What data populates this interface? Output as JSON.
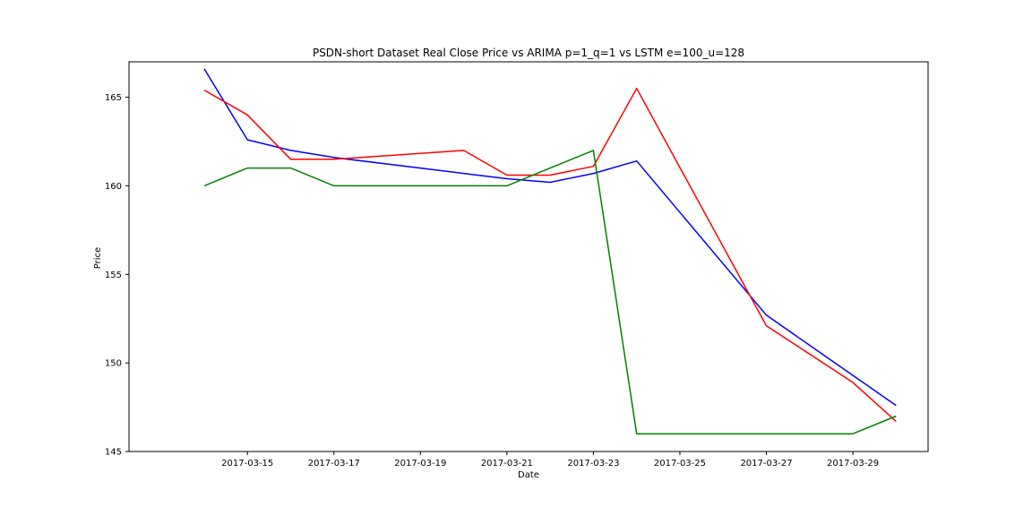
{
  "chart_data": {
    "type": "line",
    "title": "PSDN-short Dataset Real Close Price vs ARIMA p=1_q=1 vs LSTM e=100_u=128",
    "xlabel": "Date",
    "ylabel": "Price",
    "x_type": "date",
    "xlim": [
      "2017-03-13",
      "2017-03-30"
    ],
    "ylim": [
      145,
      167
    ],
    "grid": false,
    "x": [
      "2017-03-14",
      "2017-03-15",
      "2017-03-16",
      "2017-03-17",
      "2017-03-20",
      "2017-03-21",
      "2017-03-22",
      "2017-03-23",
      "2017-03-24",
      "2017-03-27",
      "2017-03-29",
      "2017-03-30"
    ],
    "x_ticks": [
      "2017-03-15",
      "2017-03-17",
      "2017-03-19",
      "2017-03-21",
      "2017-03-23",
      "2017-03-25",
      "2017-03-27",
      "2017-03-29"
    ],
    "y_ticks": [
      145,
      150,
      155,
      160,
      165
    ],
    "series": [
      {
        "color": "#0000ff",
        "values": [
          166.6,
          162.6,
          162.0,
          161.6,
          160.7,
          160.4,
          160.2,
          160.7,
          161.4,
          152.7,
          149.3,
          147.6
        ]
      },
      {
        "color": "#ff0000",
        "values": [
          165.4,
          164.0,
          161.5,
          161.5,
          162.0,
          160.6,
          160.6,
          161.1,
          165.5,
          152.1,
          148.9,
          146.7
        ]
      },
      {
        "color": "#008000",
        "values": [
          160.0,
          161.0,
          161.0,
          160.0,
          160.0,
          160.0,
          161.0,
          162.0,
          146.0,
          146.0,
          146.0,
          147.0
        ]
      }
    ]
  }
}
